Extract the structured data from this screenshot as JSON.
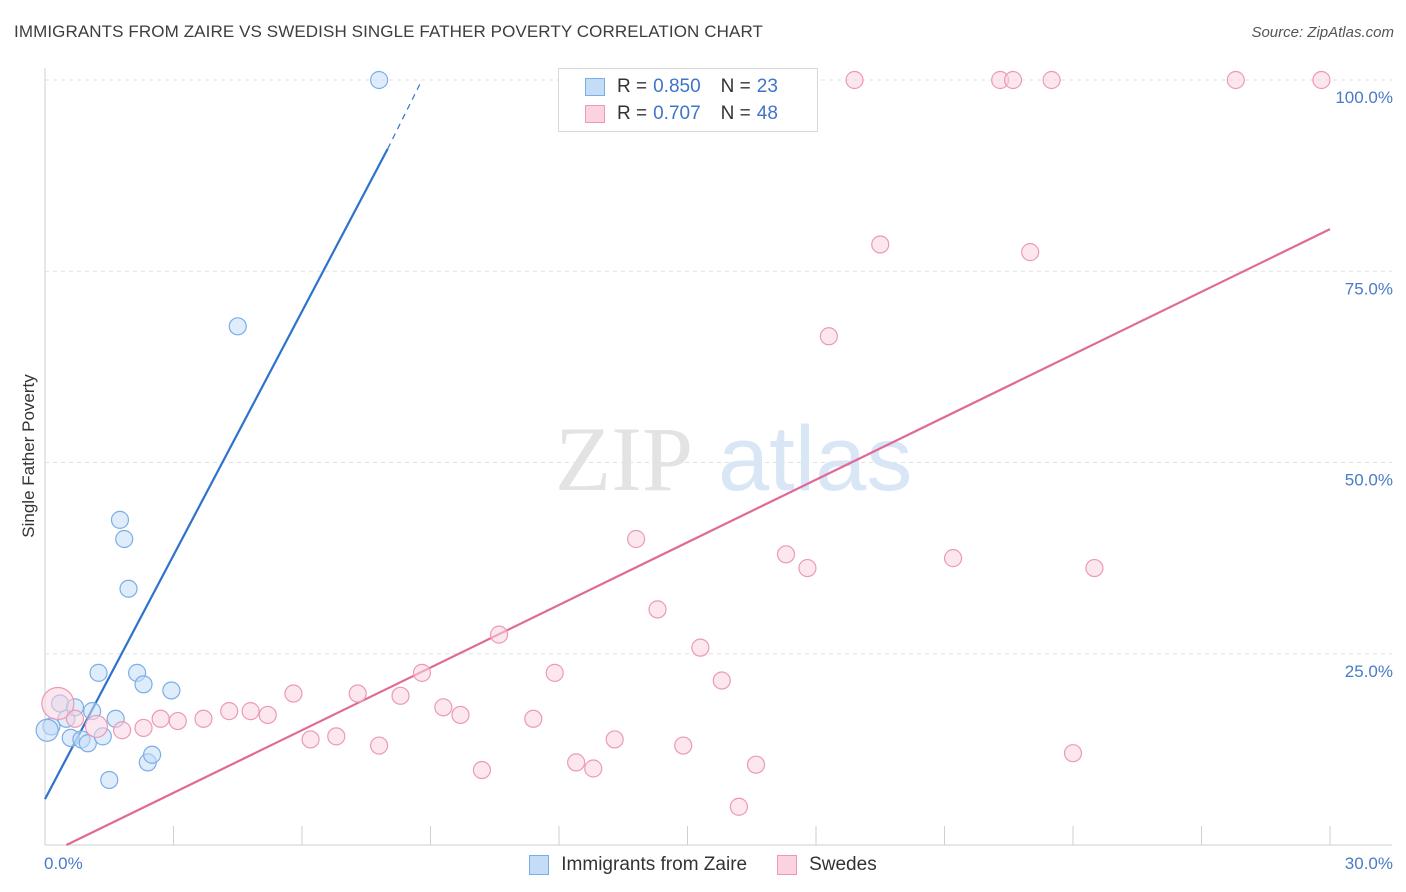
{
  "title": "IMMIGRANTS FROM ZAIRE VS SWEDISH SINGLE FATHER POVERTY CORRELATION CHART",
  "source": "Source: ZipAtlas.com",
  "watermark": {
    "zip": "ZIP",
    "atlas": "atlas"
  },
  "legend": {
    "rows": [
      {
        "r_label": "R =",
        "r_value": "0.850",
        "n_label": "N =",
        "n_value": "23",
        "color": "#7aaee8",
        "fill": "#c5dcf6"
      },
      {
        "r_label": "R =",
        "r_value": "0.707",
        "n_label": "N =",
        "n_value": "48",
        "color": "#ec99b6",
        "fill": "#fbd3e0"
      }
    ]
  },
  "chart_data": {
    "type": "scatter",
    "title": "IMMIGRANTS FROM ZAIRE VS SWEDISH SINGLE FATHER POVERTY CORRELATION CHART",
    "xlabel": "",
    "ylabel": "Single Father Poverty",
    "xlim": [
      0,
      30
    ],
    "ylim": [
      0,
      100
    ],
    "x_tick_labels": [
      "0.0%",
      "30.0%"
    ],
    "y_ticks": [
      25,
      50,
      75,
      100
    ],
    "y_tick_labels": [
      "25.0%",
      "50.0%",
      "75.0%",
      "100.0%"
    ],
    "grid": true,
    "legend_position": "top-center",
    "series": [
      {
        "name": "Immigrants from Zaire",
        "color": "#7aaee8",
        "fill": "#c5dcf6",
        "line_color": "#2f72cc",
        "trend": {
          "x0": 0,
          "y0": 6,
          "x1": 8.0,
          "y1": 91,
          "dash_to_x": 8.8,
          "dash_to_y": 100
        },
        "points": [
          [
            0.15,
            15.5
          ],
          [
            0.35,
            18.5
          ],
          [
            0.5,
            16.5
          ],
          [
            0.6,
            14.0
          ],
          [
            0.7,
            18.0
          ],
          [
            0.85,
            13.8
          ],
          [
            1.0,
            13.3
          ],
          [
            1.1,
            17.5
          ],
          [
            1.25,
            22.5
          ],
          [
            1.35,
            14.2
          ],
          [
            1.5,
            8.5
          ],
          [
            1.65,
            16.5
          ],
          [
            1.75,
            42.5
          ],
          [
            1.85,
            40.0
          ],
          [
            1.95,
            33.5
          ],
          [
            2.15,
            22.5
          ],
          [
            2.3,
            21.0
          ],
          [
            2.4,
            10.8
          ],
          [
            2.5,
            11.8
          ],
          [
            2.95,
            20.2
          ],
          [
            4.5,
            67.8
          ],
          [
            7.8,
            100.0
          ],
          [
            0.05,
            15.0
          ]
        ]
      },
      {
        "name": "Swedes",
        "color": "#ec99b6",
        "fill": "#fbd3e0",
        "line_color": "#e06a97",
        "trend": {
          "x0": 0.5,
          "y0": 0,
          "x1": 30,
          "y1": 80.5
        },
        "points": [
          [
            0.3,
            18.5
          ],
          [
            0.7,
            16.5
          ],
          [
            1.8,
            15.0
          ],
          [
            2.3,
            15.3
          ],
          [
            2.7,
            16.5
          ],
          [
            3.1,
            16.2
          ],
          [
            3.7,
            16.5
          ],
          [
            4.3,
            17.5
          ],
          [
            4.8,
            17.5
          ],
          [
            5.2,
            17.0
          ],
          [
            5.8,
            19.8
          ],
          [
            6.2,
            13.8
          ],
          [
            6.8,
            14.2
          ],
          [
            7.3,
            19.8
          ],
          [
            7.8,
            13.0
          ],
          [
            8.3,
            19.5
          ],
          [
            8.8,
            22.5
          ],
          [
            9.3,
            18.0
          ],
          [
            9.7,
            17.0
          ],
          [
            10.2,
            9.8
          ],
          [
            10.6,
            27.5
          ],
          [
            11.4,
            16.5
          ],
          [
            11.9,
            22.5
          ],
          [
            12.4,
            10.8
          ],
          [
            12.8,
            10.0
          ],
          [
            13.3,
            13.8
          ],
          [
            13.8,
            40.0
          ],
          [
            14.3,
            30.8
          ],
          [
            14.9,
            13.0
          ],
          [
            15.3,
            25.8
          ],
          [
            15.8,
            21.5
          ],
          [
            16.2,
            5.0
          ],
          [
            16.6,
            10.5
          ],
          [
            17.3,
            38.0
          ],
          [
            17.8,
            36.2
          ],
          [
            18.3,
            66.5
          ],
          [
            18.9,
            100.0
          ],
          [
            19.5,
            78.5
          ],
          [
            21.2,
            37.5
          ],
          [
            22.3,
            100.0
          ],
          [
            22.6,
            100.0
          ],
          [
            23.0,
            77.5
          ],
          [
            24.0,
            12.0
          ],
          [
            24.5,
            36.2
          ],
          [
            23.5,
            100.0
          ],
          [
            27.8,
            100.0
          ],
          [
            29.8,
            100.0
          ],
          [
            1.2,
            15.5
          ]
        ]
      }
    ]
  }
}
